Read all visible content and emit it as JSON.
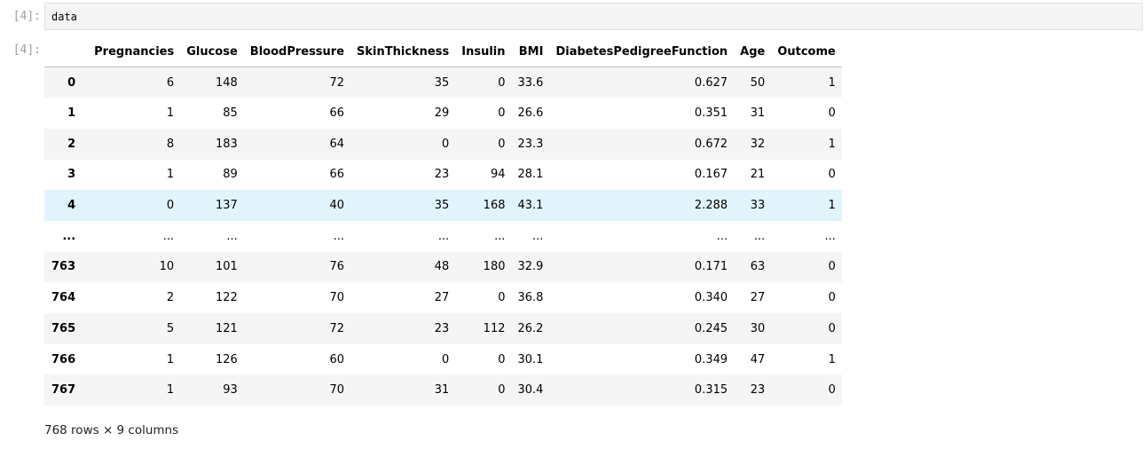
{
  "input_prompt": "[4]:",
  "output_prompt": "[4]:",
  "code": "data",
  "table": {
    "index_header": "",
    "columns": [
      "Pregnancies",
      "Glucose",
      "BloodPressure",
      "SkinThickness",
      "Insulin",
      "BMI",
      "DiabetesPedigreeFunction",
      "Age",
      "Outcome"
    ],
    "rows": [
      {
        "index": "0",
        "values": [
          "6",
          "148",
          "72",
          "35",
          "0",
          "33.6",
          "0.627",
          "50",
          "1"
        ]
      },
      {
        "index": "1",
        "values": [
          "1",
          "85",
          "66",
          "29",
          "0",
          "26.6",
          "0.351",
          "31",
          "0"
        ]
      },
      {
        "index": "2",
        "values": [
          "8",
          "183",
          "64",
          "0",
          "0",
          "23.3",
          "0.672",
          "32",
          "1"
        ]
      },
      {
        "index": "3",
        "values": [
          "1",
          "89",
          "66",
          "23",
          "94",
          "28.1",
          "0.167",
          "21",
          "0"
        ]
      },
      {
        "index": "4",
        "values": [
          "0",
          "137",
          "40",
          "35",
          "168",
          "43.1",
          "2.288",
          "33",
          "1"
        ]
      },
      {
        "index": "...",
        "values": [
          "...",
          "...",
          "...",
          "...",
          "...",
          "...",
          "...",
          "...",
          "..."
        ]
      },
      {
        "index": "763",
        "values": [
          "10",
          "101",
          "76",
          "48",
          "180",
          "32.9",
          "0.171",
          "63",
          "0"
        ]
      },
      {
        "index": "764",
        "values": [
          "2",
          "122",
          "70",
          "27",
          "0",
          "36.8",
          "0.340",
          "27",
          "0"
        ]
      },
      {
        "index": "765",
        "values": [
          "5",
          "121",
          "72",
          "23",
          "112",
          "26.2",
          "0.245",
          "30",
          "0"
        ]
      },
      {
        "index": "766",
        "values": [
          "1",
          "126",
          "60",
          "0",
          "0",
          "30.1",
          "0.349",
          "47",
          "1"
        ]
      },
      {
        "index": "767",
        "values": [
          "1",
          "93",
          "70",
          "31",
          "0",
          "30.4",
          "0.315",
          "23",
          "0"
        ]
      }
    ]
  },
  "summary": "768 rows × 9 columns",
  "colors": {
    "prompt": "#9e9e9e",
    "input_bg": "#f5f5f5",
    "row_stripe": "#f5f5f5",
    "row_hover": "#e1f3fb"
  }
}
